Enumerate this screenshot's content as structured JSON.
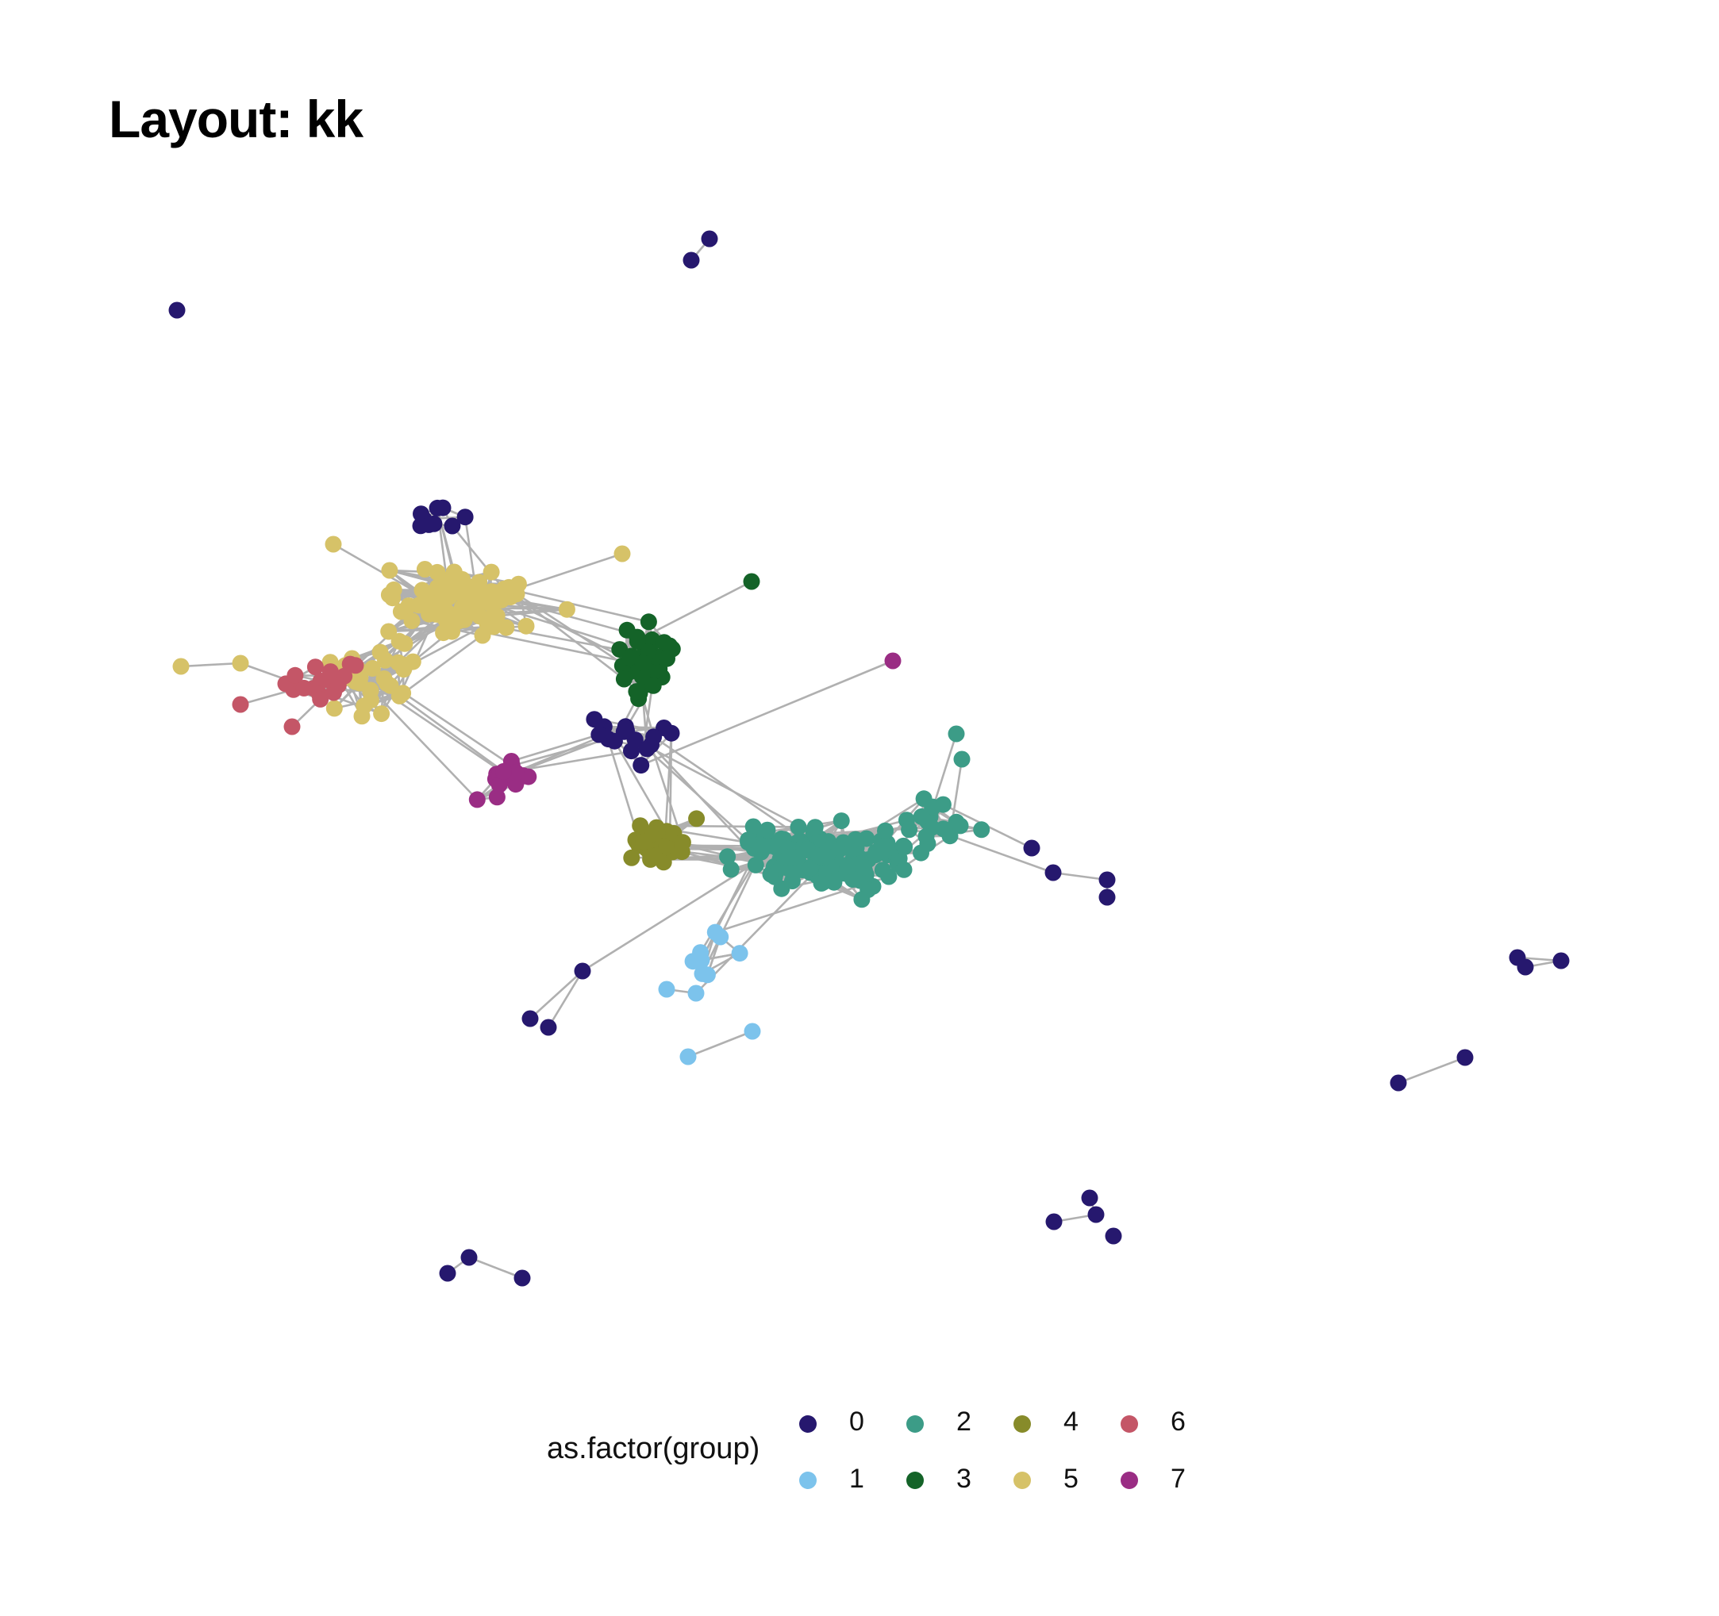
{
  "title": "Layout: kk",
  "legend": {
    "title": "as.factor(group)",
    "items": [
      {
        "label": "0",
        "color": "#26186e"
      },
      {
        "label": "1",
        "color": "#7cc3ec"
      },
      {
        "label": "2",
        "color": "#3c9c87"
      },
      {
        "label": "3",
        "color": "#146328"
      },
      {
        "label": "4",
        "color": "#878b2a"
      },
      {
        "label": "5",
        "color": "#d6c268"
      },
      {
        "label": "6",
        "color": "#c45667"
      },
      {
        "label": "7",
        "color": "#9a2d84"
      }
    ]
  },
  "edge_color": "#b0b0b0"
}
